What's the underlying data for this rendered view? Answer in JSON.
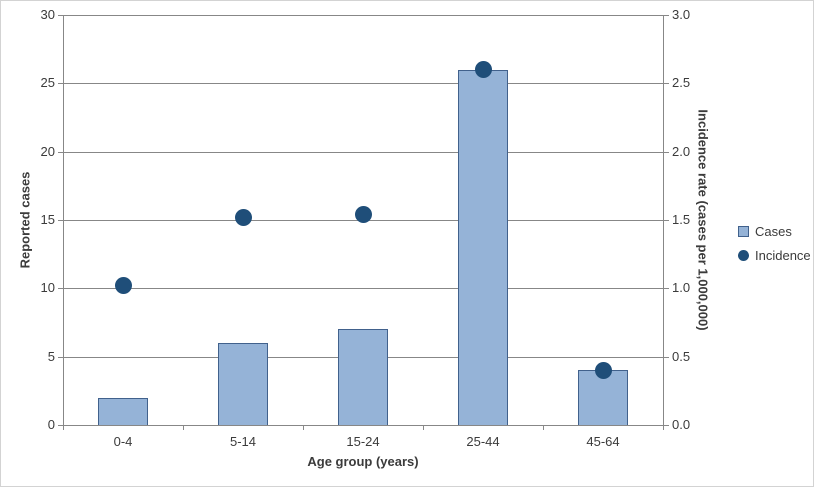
{
  "chart_data": {
    "type": "bar",
    "subtype": "combo-bar-scatter-dual-axis",
    "categories": [
      "0-4",
      "5-14",
      "15-24",
      "25-44",
      "45-64"
    ],
    "series": [
      {
        "name": "Cases",
        "type": "bar",
        "axis": "left",
        "values": [
          2,
          6,
          7,
          26,
          4
        ]
      },
      {
        "name": "Incidence",
        "type": "scatter",
        "axis": "right",
        "values": [
          1.02,
          1.52,
          1.54,
          2.6,
          0.4
        ]
      }
    ],
    "title": "",
    "xlabel": "Age group (years)",
    "ylabel_left": "Reported cases",
    "ylabel_right": "Incidence rate (cases per 1,000,000)",
    "ylim_left": [
      0,
      30
    ],
    "ylim_right": [
      0.0,
      3.0
    ],
    "left_ticks": [
      "0",
      "5",
      "10",
      "15",
      "20",
      "25",
      "30"
    ],
    "right_ticks": [
      "0.0",
      "0.5",
      "1.0",
      "1.5",
      "2.0",
      "2.5",
      "3.0"
    ],
    "grid": true,
    "legend_position": "right",
    "colors": {
      "bar_fill": "#95B3D7",
      "bar_border": "#41618C",
      "dot": "#1F4E79",
      "gridline": "#878787",
      "axis_line": "#878787",
      "text": "#3B3B3B",
      "chart_border": "#D3D3D3",
      "background": "#FFFFFF"
    }
  }
}
